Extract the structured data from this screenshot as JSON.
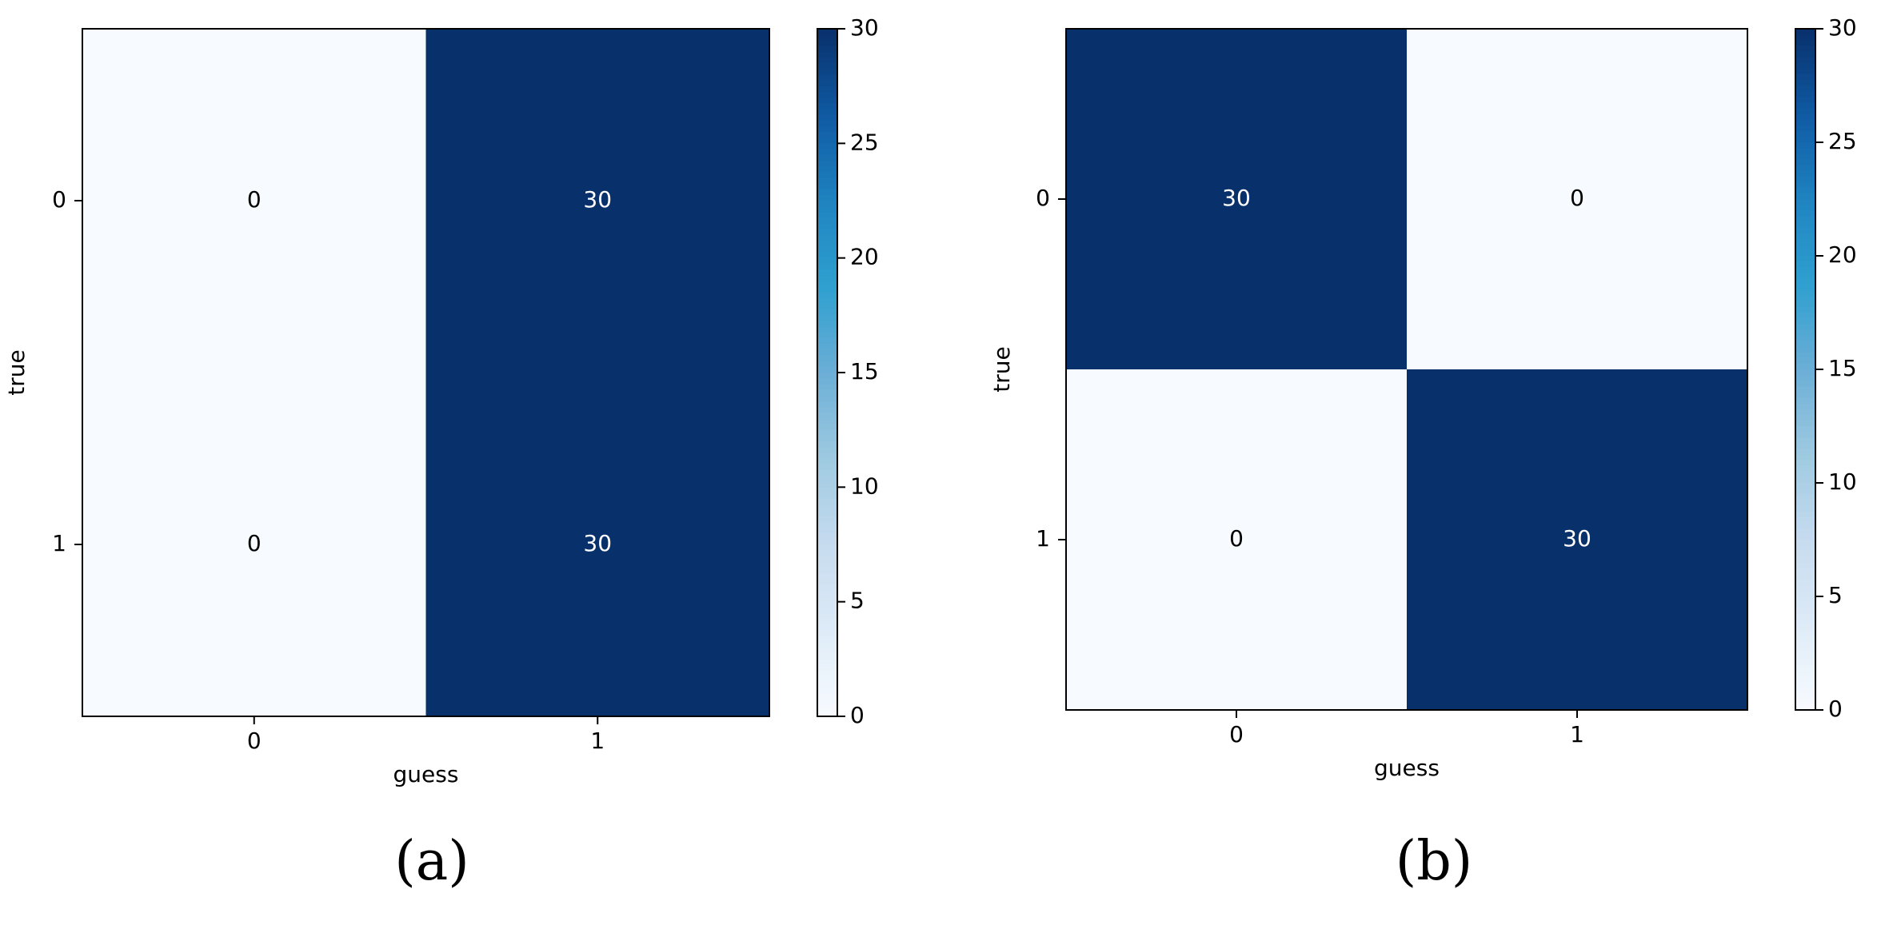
{
  "chart_data": [
    {
      "type": "heatmap",
      "panel_label": "(a)",
      "xlabel": "guess",
      "ylabel": "true",
      "x_categories": [
        "0",
        "1"
      ],
      "y_categories": [
        "0",
        "1"
      ],
      "values": [
        [
          0,
          30
        ],
        [
          0,
          30
        ]
      ],
      "cell_labels": [
        [
          "0",
          "30"
        ],
        [
          "0",
          "30"
        ]
      ],
      "colorbar": {
        "min": 0,
        "max": 30,
        "ticks": [
          0,
          5,
          10,
          15,
          20,
          25,
          30
        ],
        "tick_labels": [
          "0",
          "5",
          "10",
          "15",
          "20",
          "25",
          "30"
        ]
      },
      "colormap": [
        "#f7fbff",
        "#deebf7",
        "#c6dbef",
        "#9ecae1",
        "#6baed6",
        "#2ea0d0",
        "#1f83c0",
        "#0f5aa3",
        "#08306b"
      ]
    },
    {
      "type": "heatmap",
      "panel_label": "(b)",
      "xlabel": "guess",
      "ylabel": "true",
      "x_categories": [
        "0",
        "1"
      ],
      "y_categories": [
        "0",
        "1"
      ],
      "values": [
        [
          30,
          0
        ],
        [
          0,
          30
        ]
      ],
      "cell_labels": [
        [
          "30",
          "0"
        ],
        [
          "0",
          "30"
        ]
      ],
      "colorbar": {
        "min": 0,
        "max": 30,
        "ticks": [
          0,
          5,
          10,
          15,
          20,
          25,
          30
        ],
        "tick_labels": [
          "0",
          "5",
          "10",
          "15",
          "20",
          "25",
          "30"
        ]
      },
      "colormap": [
        "#f7fbff",
        "#deebf7",
        "#c6dbef",
        "#9ecae1",
        "#6baed6",
        "#2ea0d0",
        "#1f83c0",
        "#0f5aa3",
        "#08306b"
      ]
    }
  ]
}
